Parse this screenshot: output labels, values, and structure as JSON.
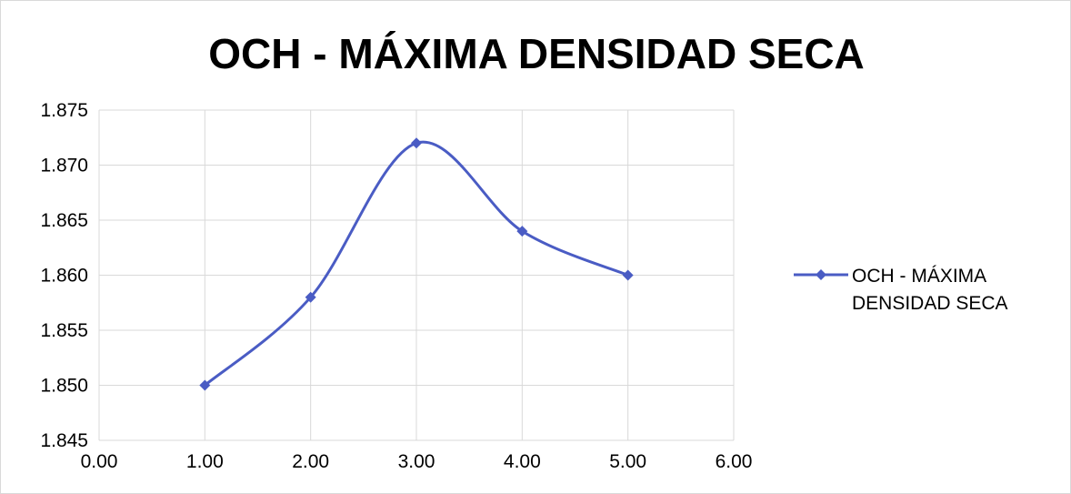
{
  "chart_data": {
    "type": "line",
    "title": "OCH - MÁXIMA DENSIDAD SECA",
    "xlabel": "",
    "ylabel": "",
    "xlim": [
      0,
      6
    ],
    "ylim": [
      1.845,
      1.875
    ],
    "x_ticks": [
      "0.00",
      "1.00",
      "2.00",
      "3.00",
      "4.00",
      "5.00",
      "6.00"
    ],
    "y_ticks": [
      "1.875",
      "1.870",
      "1.865",
      "1.860",
      "1.855",
      "1.850",
      "1.845"
    ],
    "grid": true,
    "smooth": true,
    "marker": "diamond",
    "legend_position": "right",
    "series": [
      {
        "name": "OCH - MÁXIMA DENSIDAD SECA",
        "legend_lines": [
          "OCH - MÁXIMA",
          "DENSIDAD SECA"
        ],
        "color": "#4a5cc4",
        "x": [
          1,
          2,
          3,
          4,
          5
        ],
        "y": [
          1.85,
          1.858,
          1.872,
          1.864,
          1.86
        ]
      }
    ]
  }
}
